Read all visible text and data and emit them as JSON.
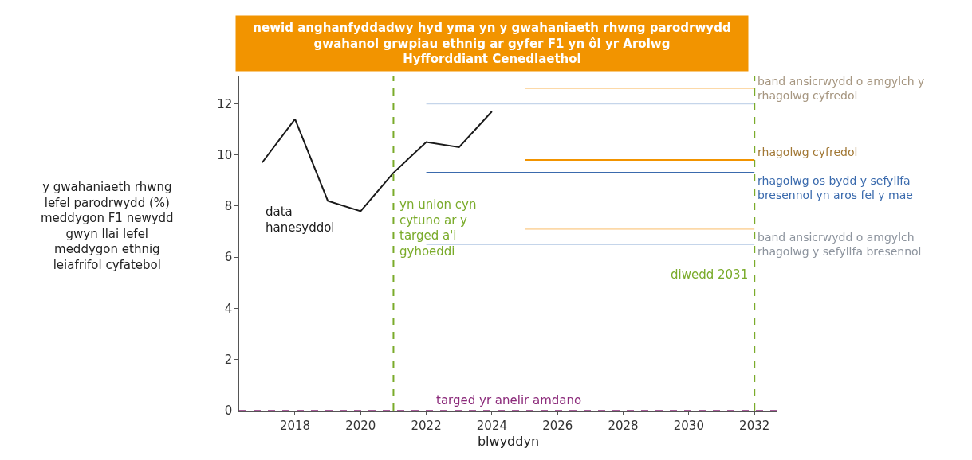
{
  "chart_data": {
    "type": "line",
    "title": "newid anghanfyddadwy hyd yma yn y gwahaniaeth rhwng parodrwydd gwahanol grwpiau ethnig ar gyfer F1 yn ôl yr Arolwg Hyfforddiant Cenedlaethol",
    "xlabel": "blwyddyn",
    "ylabel": "y gwahaniaeth rhwng lefel parodrwydd (%) meddygon F1 newydd gwyn llai lefel meddygon ethnig leiafrifol cyfatebol",
    "series": [
      {
        "name": "data hanesyddol",
        "color": "#1a1a1a",
        "x": [
          2017,
          2018,
          2019,
          2020,
          2021,
          2022,
          2023,
          2024
        ],
        "values": [
          9.7,
          11.4,
          8.2,
          7.8,
          9.3,
          10.5,
          10.3,
          11.7
        ]
      },
      {
        "name": "band ansicrwydd o amgylch y rhagolwg cyfredol",
        "color": "#fcd9a8",
        "x": [
          2025,
          2032
        ],
        "values": [
          12.6,
          12.6
        ]
      },
      {
        "color": "#c5d5ea",
        "x": [
          2022,
          2032
        ],
        "values": [
          12.0,
          12.0
        ]
      },
      {
        "name": "rhagolwg cyfredol",
        "color": "#f29400",
        "x": [
          2025,
          2032
        ],
        "values": [
          9.8,
          9.8
        ]
      },
      {
        "name": "rhagolwg os bydd y sefyllfa bresennol yn aros fel y mae",
        "color": "#3a6aad",
        "x": [
          2022,
          2032
        ],
        "values": [
          9.3,
          9.3
        ]
      },
      {
        "color": "#fcd9a8",
        "x": [
          2025,
          2032
        ],
        "values": [
          7.1,
          7.1
        ]
      },
      {
        "name": "band ansicrwydd o amgylch rhagolwg y sefyllfa bresennol",
        "color": "#c5d5ea",
        "x": [
          2022,
          2032
        ],
        "values": [
          6.5,
          6.5
        ]
      }
    ],
    "ref_lines": [
      {
        "axis": "x",
        "value": 2021,
        "label": "yn union cyn cytuno ar y targed a'i gyhoeddi",
        "color": "#7aab2a",
        "line_style": "dashed"
      },
      {
        "axis": "x",
        "value": 2032,
        "label": "diwedd 2031",
        "color": "#7aab2a",
        "line_style": "dashed"
      },
      {
        "axis": "y",
        "value": 0,
        "label": "targed yr anelir amdano",
        "color": "#8b2a7a",
        "line_style": "dashed"
      }
    ],
    "xlim": [
      2016.3,
      2032.7
    ],
    "xticks": [
      2018,
      2020,
      2022,
      2024,
      2026,
      2028,
      2030,
      2032
    ],
    "ylim": [
      0,
      13.1
    ],
    "yticks": [
      0,
      2,
      4,
      6,
      8,
      10,
      12
    ],
    "legend": false,
    "line_style": "solid"
  }
}
